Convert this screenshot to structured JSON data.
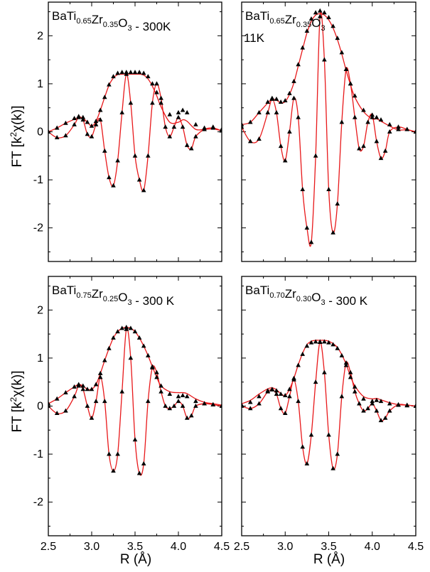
{
  "figure": {
    "xlabel": "R (Å)",
    "ylabel_main": "FT [k",
    "ylabel_sup": "2",
    "ylabel_rest": "χ(k)]"
  },
  "chart_data": [
    {
      "type": "line",
      "title_segments": [
        {
          "t": "BaTi",
          "s": false
        },
        {
          "t": "0.65",
          "s": true
        },
        {
          "t": "Zr",
          "s": false
        },
        {
          "t": "0.35",
          "s": true
        },
        {
          "t": "O",
          "s": false
        },
        {
          "t": "3",
          "s": true
        },
        {
          "t": " - 300K",
          "s": false
        }
      ],
      "title_line2": "",
      "xlim": [
        2.5,
        4.5
      ],
      "ylim": [
        -2.7,
        2.7
      ],
      "xticks": [
        "2.5",
        "3.0",
        "3.5",
        "4.0",
        "4.5"
      ],
      "yticks": [
        "-2",
        "-1",
        "0",
        "1",
        "2"
      ],
      "series": [
        {
          "kind": "envelope",
          "x": [
            2.5,
            2.6,
            2.7,
            2.8,
            2.85,
            2.9,
            2.95,
            3.0,
            3.05,
            3.1,
            3.15,
            3.2,
            3.25,
            3.3,
            3.35,
            3.4,
            3.45,
            3.5,
            3.55,
            3.6,
            3.65,
            3.7,
            3.75,
            3.8,
            3.9,
            4.0,
            4.05,
            4.1,
            4.2,
            4.3,
            4.4,
            4.5
          ],
          "y": [
            0.0,
            0.08,
            0.18,
            0.28,
            0.32,
            0.3,
            0.2,
            0.12,
            0.22,
            0.45,
            0.72,
            0.98,
            1.15,
            1.22,
            1.24,
            1.24,
            1.24,
            1.24,
            1.24,
            1.22,
            1.15,
            1.0,
            0.82,
            0.6,
            0.36,
            0.4,
            0.45,
            0.4,
            0.15,
            0.08,
            0.1,
            0.05
          ]
        },
        {
          "kind": "oscillation",
          "x": [
            2.5,
            2.6,
            2.7,
            2.8,
            2.85,
            2.9,
            2.95,
            3.0,
            3.05,
            3.1,
            3.15,
            3.2,
            3.25,
            3.3,
            3.35,
            3.4,
            3.45,
            3.5,
            3.55,
            3.6,
            3.65,
            3.7,
            3.75,
            3.8,
            3.85,
            3.9,
            3.95,
            4.0,
            4.05,
            4.1,
            4.15,
            4.2,
            4.3,
            4.4,
            4.5
          ],
          "y": [
            0.0,
            -0.12,
            -0.08,
            0.15,
            0.3,
            0.25,
            -0.05,
            -0.1,
            0.15,
            0.25,
            -0.4,
            -0.95,
            -1.12,
            -0.6,
            0.4,
            1.2,
            0.6,
            -0.5,
            -1.0,
            -1.22,
            -0.5,
            0.6,
            1.0,
            0.7,
            0.1,
            -0.1,
            0.1,
            0.3,
            0.1,
            -0.28,
            -0.35,
            -0.1,
            0.05,
            0.08,
            0.02
          ]
        },
        {
          "kind": "fit_envelope",
          "x": [
            2.5,
            2.6,
            2.7,
            2.8,
            2.85,
            2.9,
            2.95,
            3.0,
            3.05,
            3.1,
            3.15,
            3.2,
            3.25,
            3.3,
            3.35,
            3.4,
            3.45,
            3.5,
            3.55,
            3.6,
            3.65,
            3.7,
            3.75,
            3.8,
            3.9,
            4.0,
            4.05,
            4.1,
            4.2,
            4.3,
            4.4,
            4.5
          ],
          "y": [
            0.0,
            0.08,
            0.18,
            0.26,
            0.3,
            0.28,
            0.2,
            0.12,
            0.22,
            0.45,
            0.72,
            0.97,
            1.12,
            1.19,
            1.2,
            1.2,
            1.2,
            1.2,
            1.2,
            1.18,
            1.1,
            0.95,
            0.75,
            0.52,
            0.2,
            0.2,
            0.25,
            0.22,
            0.05,
            0.05,
            0.06,
            0.02
          ]
        }
      ]
    },
    {
      "type": "line",
      "title_segments": [
        {
          "t": "BaTi",
          "s": false
        },
        {
          "t": "0.65",
          "s": true
        },
        {
          "t": "Zr",
          "s": false
        },
        {
          "t": "0.35",
          "s": true
        },
        {
          "t": "O",
          "s": false
        },
        {
          "t": "3",
          "s": true
        }
      ],
      "title_line2": "11K",
      "xlim": [
        2.5,
        4.5
      ],
      "ylim": [
        -2.7,
        2.7
      ],
      "xticks": [
        "2.5",
        "3.0",
        "3.5",
        "4.0",
        "4.5"
      ],
      "yticks": [
        "-2",
        "-1",
        "0",
        "1",
        "2"
      ],
      "series": [
        {
          "kind": "envelope",
          "x": [
            2.5,
            2.6,
            2.7,
            2.8,
            2.85,
            2.9,
            2.95,
            3.0,
            3.05,
            3.1,
            3.15,
            3.2,
            3.25,
            3.3,
            3.35,
            3.4,
            3.45,
            3.5,
            3.55,
            3.6,
            3.65,
            3.7,
            3.75,
            3.8,
            3.9,
            4.0,
            4.05,
            4.1,
            4.2,
            4.3,
            4.4,
            4.5
          ],
          "y": [
            0.15,
            0.2,
            0.4,
            0.62,
            0.7,
            0.68,
            0.62,
            0.65,
            0.8,
            1.05,
            1.4,
            1.75,
            2.1,
            2.35,
            2.48,
            2.52,
            2.48,
            2.38,
            2.2,
            1.95,
            1.65,
            1.3,
            1.0,
            0.75,
            0.45,
            0.3,
            0.3,
            0.25,
            0.15,
            0.05,
            0.05,
            0.0
          ]
        },
        {
          "kind": "oscillation",
          "x": [
            2.5,
            2.6,
            2.7,
            2.8,
            2.85,
            2.9,
            2.95,
            3.0,
            3.05,
            3.1,
            3.15,
            3.2,
            3.25,
            3.3,
            3.35,
            3.4,
            3.45,
            3.5,
            3.55,
            3.6,
            3.65,
            3.7,
            3.75,
            3.8,
            3.85,
            3.9,
            3.95,
            4.0,
            4.05,
            4.1,
            4.15,
            4.2,
            4.3,
            4.4,
            4.5
          ],
          "y": [
            0.1,
            -0.2,
            -0.15,
            0.4,
            0.68,
            0.4,
            -0.3,
            -0.6,
            0.0,
            0.7,
            0.3,
            -1.2,
            -2.0,
            -2.3,
            -0.5,
            2.4,
            1.5,
            -1.2,
            -2.1,
            -1.5,
            0.2,
            1.3,
            1.0,
            0.3,
            -0.35,
            -0.3,
            0.2,
            0.35,
            -0.2,
            -0.55,
            -0.4,
            0.0,
            0.1,
            0.05,
            0.0
          ]
        },
        {
          "kind": "fit_envelope",
          "x": [
            2.5,
            2.6,
            2.7,
            2.8,
            2.85,
            2.9,
            2.95,
            3.0,
            3.05,
            3.1,
            3.15,
            3.2,
            3.25,
            3.3,
            3.35,
            3.4,
            3.45,
            3.5,
            3.55,
            3.6,
            3.65,
            3.7,
            3.75,
            3.8,
            3.9,
            4.0,
            4.05,
            4.1,
            4.2,
            4.3,
            4.4,
            4.5
          ],
          "y": [
            0.15,
            0.2,
            0.4,
            0.6,
            0.68,
            0.66,
            0.6,
            0.63,
            0.78,
            1.02,
            1.37,
            1.72,
            2.06,
            2.3,
            2.43,
            2.46,
            2.43,
            2.33,
            2.16,
            1.92,
            1.62,
            1.28,
            0.98,
            0.72,
            0.42,
            0.27,
            0.27,
            0.22,
            0.12,
            0.04,
            0.04,
            0.0
          ]
        }
      ]
    },
    {
      "type": "line",
      "title_segments": [
        {
          "t": "BaTi",
          "s": false
        },
        {
          "t": "0.75",
          "s": true
        },
        {
          "t": "Zr",
          "s": false
        },
        {
          "t": "0.25",
          "s": true
        },
        {
          "t": "O",
          "s": false
        },
        {
          "t": "3",
          "s": true
        },
        {
          "t": " - 300 K",
          "s": false
        }
      ],
      "title_line2": "",
      "xlim": [
        2.5,
        4.5
      ],
      "ylim": [
        -2.7,
        2.7
      ],
      "xticks": [
        "2.5",
        "3.0",
        "3.5",
        "4.0",
        "4.5"
      ],
      "yticks": [
        "-2",
        "-1",
        "0",
        "1",
        "2"
      ],
      "series": [
        {
          "kind": "envelope",
          "x": [
            2.5,
            2.6,
            2.7,
            2.8,
            2.85,
            2.9,
            2.95,
            3.0,
            3.05,
            3.1,
            3.15,
            3.2,
            3.25,
            3.3,
            3.35,
            3.4,
            3.45,
            3.5,
            3.55,
            3.6,
            3.65,
            3.7,
            3.75,
            3.8,
            3.9,
            4.0,
            4.05,
            4.1,
            4.2,
            4.3,
            4.4,
            4.5
          ],
          "y": [
            0.05,
            0.15,
            0.28,
            0.4,
            0.45,
            0.42,
            0.35,
            0.35,
            0.45,
            0.68,
            0.95,
            1.2,
            1.42,
            1.55,
            1.62,
            1.64,
            1.62,
            1.55,
            1.42,
            1.25,
            1.05,
            0.82,
            0.6,
            0.42,
            0.25,
            0.2,
            0.22,
            0.2,
            0.1,
            0.05,
            0.03,
            0.0
          ]
        },
        {
          "kind": "oscillation",
          "x": [
            2.5,
            2.6,
            2.7,
            2.8,
            2.85,
            2.9,
            2.95,
            3.0,
            3.05,
            3.1,
            3.15,
            3.2,
            3.25,
            3.3,
            3.35,
            3.4,
            3.45,
            3.5,
            3.55,
            3.6,
            3.65,
            3.7,
            3.75,
            3.8,
            3.85,
            3.9,
            3.95,
            4.0,
            4.05,
            4.1,
            4.15,
            4.2,
            4.3,
            4.4,
            4.5
          ],
          "y": [
            0.0,
            -0.15,
            -0.1,
            0.2,
            0.42,
            0.35,
            0.0,
            -0.25,
            0.1,
            0.6,
            0.1,
            -1.0,
            -1.35,
            -1.0,
            0.3,
            1.6,
            1.0,
            -0.7,
            -1.4,
            -1.2,
            0.1,
            0.8,
            0.7,
            0.3,
            0.0,
            -0.05,
            0.0,
            0.1,
            0.0,
            -0.25,
            -0.2,
            0.0,
            0.05,
            0.03,
            0.0
          ]
        },
        {
          "kind": "fit_envelope",
          "x": [
            2.5,
            2.6,
            2.7,
            2.8,
            2.85,
            2.9,
            2.95,
            3.0,
            3.05,
            3.1,
            3.15,
            3.2,
            3.25,
            3.3,
            3.35,
            3.4,
            3.45,
            3.5,
            3.55,
            3.6,
            3.65,
            3.7,
            3.75,
            3.8,
            3.9,
            4.0,
            4.05,
            4.1,
            4.2,
            4.3,
            4.4,
            4.5
          ],
          "y": [
            0.05,
            0.15,
            0.28,
            0.4,
            0.45,
            0.42,
            0.35,
            0.35,
            0.45,
            0.68,
            0.95,
            1.2,
            1.42,
            1.55,
            1.62,
            1.64,
            1.62,
            1.55,
            1.42,
            1.25,
            1.05,
            0.82,
            0.6,
            0.42,
            0.3,
            0.28,
            0.28,
            0.26,
            0.15,
            0.08,
            0.05,
            0.02
          ]
        }
      ]
    },
    {
      "type": "line",
      "title_segments": [
        {
          "t": "BaTi",
          "s": false
        },
        {
          "t": "0.70",
          "s": true
        },
        {
          "t": "Zr",
          "s": false
        },
        {
          "t": "0.30",
          "s": true
        },
        {
          "t": "O",
          "s": false
        },
        {
          "t": "3",
          "s": true
        },
        {
          "t": " - 300 K",
          "s": false
        }
      ],
      "title_line2": "",
      "xlim": [
        2.5,
        4.5
      ],
      "ylim": [
        -2.7,
        2.7
      ],
      "xticks": [
        "2.5",
        "3.0",
        "3.5",
        "4.0",
        "4.5"
      ],
      "yticks": [
        "-2",
        "-1",
        "0",
        "1",
        "2"
      ],
      "series": [
        {
          "kind": "envelope",
          "x": [
            2.5,
            2.6,
            2.7,
            2.8,
            2.85,
            2.9,
            2.95,
            3.0,
            3.05,
            3.1,
            3.15,
            3.2,
            3.25,
            3.3,
            3.35,
            3.4,
            3.45,
            3.5,
            3.55,
            3.6,
            3.65,
            3.7,
            3.75,
            3.8,
            3.9,
            4.0,
            4.05,
            4.1,
            4.2,
            4.3,
            4.4,
            4.5
          ],
          "y": [
            0.02,
            0.08,
            0.2,
            0.32,
            0.35,
            0.32,
            0.25,
            0.22,
            0.35,
            0.58,
            0.85,
            1.08,
            1.25,
            1.32,
            1.34,
            1.34,
            1.34,
            1.32,
            1.28,
            1.2,
            1.05,
            0.85,
            0.6,
            0.4,
            0.15,
            0.1,
            0.12,
            0.1,
            0.05,
            0.02,
            0.01,
            0.0
          ]
        },
        {
          "kind": "oscillation",
          "x": [
            2.5,
            2.6,
            2.7,
            2.8,
            2.85,
            2.9,
            2.95,
            3.0,
            3.05,
            3.1,
            3.15,
            3.2,
            3.25,
            3.3,
            3.35,
            3.4,
            3.45,
            3.5,
            3.55,
            3.6,
            3.65,
            3.7,
            3.75,
            3.8,
            3.85,
            3.9,
            3.95,
            4.0,
            4.05,
            4.1,
            4.15,
            4.2,
            4.3,
            4.4,
            4.5
          ],
          "y": [
            0.0,
            -0.05,
            0.05,
            0.3,
            0.34,
            0.25,
            -0.05,
            -0.15,
            0.2,
            0.55,
            0.1,
            -0.85,
            -1.2,
            -0.6,
            0.5,
            1.33,
            0.7,
            -0.6,
            -1.3,
            -1.0,
            0.2,
            0.9,
            0.7,
            0.3,
            0.05,
            -0.1,
            -0.05,
            0.05,
            -0.1,
            -0.3,
            -0.25,
            -0.1,
            0.03,
            0.02,
            0.0
          ]
        },
        {
          "kind": "fit_envelope",
          "x": [
            2.5,
            2.6,
            2.7,
            2.8,
            2.85,
            2.9,
            2.95,
            3.0,
            3.05,
            3.1,
            3.15,
            3.2,
            3.25,
            3.3,
            3.35,
            3.4,
            3.45,
            3.5,
            3.55,
            3.6,
            3.65,
            3.7,
            3.75,
            3.8,
            3.9,
            4.0,
            4.05,
            4.1,
            4.2,
            4.3,
            4.4,
            4.5
          ],
          "y": [
            0.05,
            0.12,
            0.25,
            0.36,
            0.38,
            0.34,
            0.26,
            0.22,
            0.35,
            0.58,
            0.86,
            1.1,
            1.28,
            1.35,
            1.37,
            1.37,
            1.37,
            1.35,
            1.3,
            1.22,
            1.07,
            0.87,
            0.62,
            0.42,
            0.2,
            0.15,
            0.16,
            0.13,
            0.07,
            0.03,
            0.02,
            0.0
          ]
        }
      ]
    }
  ]
}
